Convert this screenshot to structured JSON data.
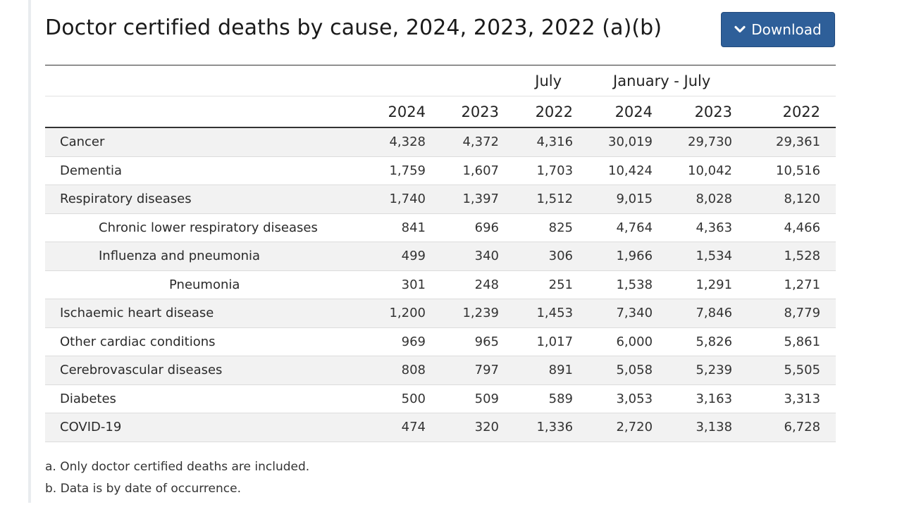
{
  "title": "Doctor certified deaths by cause, 2024, 2023, 2022 (a)(b)",
  "download_label": "Download",
  "icons": {
    "download_chevron": "chevron-down-icon"
  },
  "colors": {
    "button_bg": "#2e5f99",
    "row_shade": "#f2f2f2"
  },
  "table": {
    "groups": [
      "July",
      "January - July"
    ],
    "years": [
      "2024",
      "2023",
      "2022",
      "2024",
      "2023",
      "2022"
    ],
    "rows": [
      {
        "label": "Cancer",
        "indent": 0,
        "values": [
          "4,328",
          "4,372",
          "4,316",
          "30,019",
          "29,730",
          "29,361"
        ]
      },
      {
        "label": "Dementia",
        "indent": 0,
        "values": [
          "1,759",
          "1,607",
          "1,703",
          "10,424",
          "10,042",
          "10,516"
        ]
      },
      {
        "label": "Respiratory diseases",
        "indent": 0,
        "values": [
          "1,740",
          "1,397",
          "1,512",
          "9,015",
          "8,028",
          "8,120"
        ]
      },
      {
        "label": "Chronic lower respiratory diseases",
        "indent": 1,
        "values": [
          "841",
          "696",
          "825",
          "4,764",
          "4,363",
          "4,466"
        ]
      },
      {
        "label": "Influenza and pneumonia",
        "indent": 1,
        "values": [
          "499",
          "340",
          "306",
          "1,966",
          "1,534",
          "1,528"
        ]
      },
      {
        "label": "Pneumonia",
        "indent": 2,
        "values": [
          "301",
          "248",
          "251",
          "1,538",
          "1,291",
          "1,271"
        ]
      },
      {
        "label": "Ischaemic heart disease",
        "indent": 0,
        "values": [
          "1,200",
          "1,239",
          "1,453",
          "7,340",
          "7,846",
          "8,779"
        ]
      },
      {
        "label": "Other cardiac conditions",
        "indent": 0,
        "values": [
          "969",
          "965",
          "1,017",
          "6,000",
          "5,826",
          "5,861"
        ]
      },
      {
        "label": "Cerebrovascular diseases",
        "indent": 0,
        "values": [
          "808",
          "797",
          "891",
          "5,058",
          "5,239",
          "5,505"
        ]
      },
      {
        "label": "Diabetes",
        "indent": 0,
        "values": [
          "500",
          "509",
          "589",
          "3,053",
          "3,163",
          "3,313"
        ]
      },
      {
        "label": "COVID-19",
        "indent": 0,
        "values": [
          "474",
          "320",
          "1,336",
          "2,720",
          "3,138",
          "6,728"
        ]
      }
    ]
  },
  "notes": [
    "a. Only doctor certified deaths are included.",
    "b. Data is by date of occurrence."
  ]
}
